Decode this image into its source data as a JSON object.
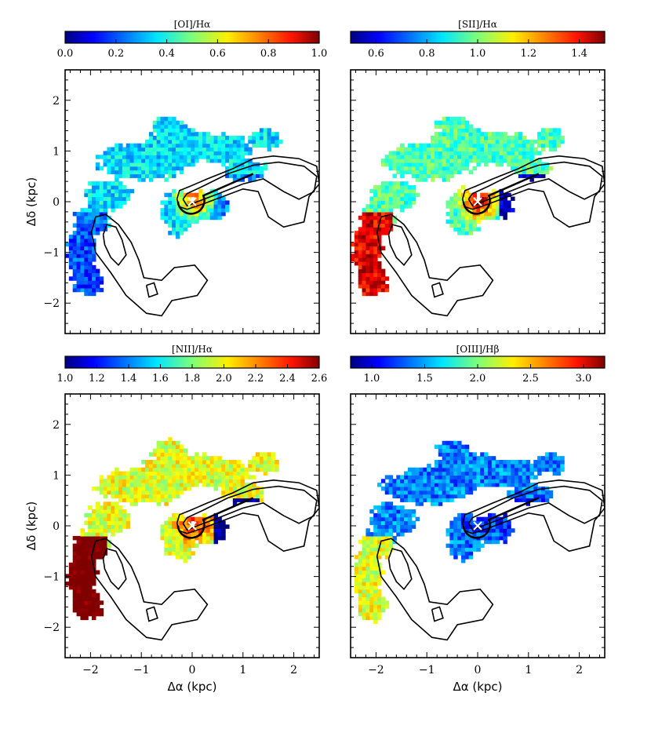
{
  "figure": {
    "axis_labels": {
      "ylabel": "Δδ (kpc)",
      "xlabel": "Δα (kpc)"
    }
  },
  "chart_data": [
    {
      "type": "heatmap",
      "panel": "top-left",
      "title": "[OI]/Hα",
      "colorbar": {
        "label": "[OI]/Hα",
        "range": [
          0.0,
          1.0
        ],
        "ticks": [
          "0.0",
          "0.2",
          "0.4",
          "0.6",
          "0.8",
          "1.0"
        ],
        "colormap": "jet"
      },
      "xlim": [
        -2.5,
        2.5
      ],
      "ylim": [
        -2.6,
        2.6
      ],
      "xticks": [],
      "yticks": [
        "−2",
        "−1",
        "0",
        "1",
        "2"
      ],
      "xlabel": "",
      "ylabel": "Δδ (kpc)",
      "marker": {
        "symbol": "×",
        "x": 0,
        "y": 0
      },
      "grid": false
    },
    {
      "type": "heatmap",
      "panel": "top-right",
      "title": "[SII]/Hα",
      "colorbar": {
        "label": "[SII]/Hα",
        "range": [
          0.5,
          1.5
        ],
        "ticks": [
          "0.6",
          "0.8",
          "1.0",
          "1.2",
          "1.4"
        ],
        "colormap": "jet"
      },
      "xlim": [
        -2.5,
        2.5
      ],
      "ylim": [
        -2.6,
        2.6
      ],
      "xticks": [],
      "yticks": [],
      "xlabel": "",
      "ylabel": "",
      "marker": {
        "symbol": "×",
        "x": 0,
        "y": 0
      },
      "grid": false
    },
    {
      "type": "heatmap",
      "panel": "bottom-left",
      "title": "[NII]/Hα",
      "colorbar": {
        "label": "[NII]/Hα",
        "range": [
          1.0,
          2.6
        ],
        "ticks": [
          "1.0",
          "1.2",
          "1.4",
          "1.6",
          "1.8",
          "2.0",
          "2.2",
          "2.4",
          "2.6"
        ],
        "colormap": "jet"
      },
      "xlim": [
        -2.5,
        2.5
      ],
      "ylim": [
        -2.6,
        2.6
      ],
      "xticks": [
        "−2",
        "−1",
        "0",
        "1",
        "2"
      ],
      "yticks": [
        "−2",
        "−1",
        "0",
        "1",
        "2"
      ],
      "xlabel": "Δα (kpc)",
      "ylabel": "Δδ (kpc)",
      "marker": {
        "symbol": "×",
        "x": 0,
        "y": 0
      },
      "grid": false
    },
    {
      "type": "heatmap",
      "panel": "bottom-right",
      "title": "[OIII]/Hβ",
      "colorbar": {
        "label": "[OIII]/Hβ",
        "range": [
          0.8,
          3.2
        ],
        "ticks": [
          "1.0",
          "1.5",
          "2.0",
          "2.5",
          "3.0"
        ],
        "colormap": "jet"
      },
      "xlim": [
        -2.5,
        2.5
      ],
      "ylim": [
        -2.6,
        2.6
      ],
      "xticks": [
        "−2",
        "−1",
        "0",
        "1",
        "2"
      ],
      "yticks": [],
      "xlabel": "Δα (kpc)",
      "ylabel": "",
      "marker": {
        "symbol": "×",
        "x": 0,
        "y": 0
      },
      "grid": false
    }
  ]
}
